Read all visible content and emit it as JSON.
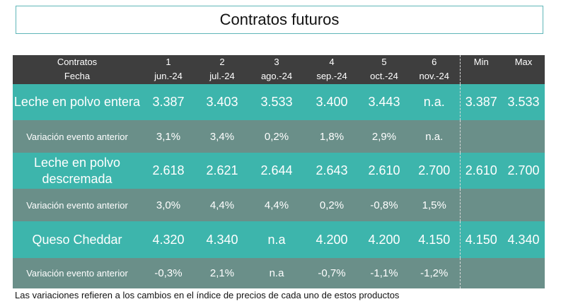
{
  "title": "Contratos futuros",
  "header": {
    "label_top": "Contratos",
    "label_bottom": "Fecha",
    "columns": [
      {
        "num": "1",
        "date": "jun.-24"
      },
      {
        "num": "2",
        "date": "jul.-24"
      },
      {
        "num": "3",
        "date": "ago.-24"
      },
      {
        "num": "4",
        "date": "sep.-24"
      },
      {
        "num": "5",
        "date": "oct.-24"
      },
      {
        "num": "6",
        "date": "nov.-24"
      }
    ],
    "min_label": "Min",
    "max_label": "Max"
  },
  "rows": [
    {
      "name": "Leche en polvo entera",
      "values": [
        "3.387",
        "3.403",
        "3.533",
        "3.400",
        "3.443",
        "n.a."
      ],
      "min": "3.387",
      "max": "3.533"
    },
    {
      "name": "Variación evento anterior",
      "values": [
        "3,1%",
        "3,4%",
        "0,2%",
        "1,8%",
        "2,9%",
        "n.a."
      ],
      "min": "",
      "max": ""
    },
    {
      "name": "Leche en polvo descremada",
      "values": [
        "2.618",
        "2.621",
        "2.644",
        "2.643",
        "2.610",
        "2.700"
      ],
      "min": "2.610",
      "max": "2.700"
    },
    {
      "name": "Variación evento anterior",
      "values": [
        "3,0%",
        "4,4%",
        "4,4%",
        "0,2%",
        "-0,8%",
        "1,5%"
      ],
      "min": "",
      "max": ""
    },
    {
      "name": "Queso Cheddar",
      "values": [
        "4.320",
        "4.340",
        "n.a",
        "4.200",
        "4.200",
        "4.150"
      ],
      "min": "4.150",
      "max": "4.340"
    },
    {
      "name": "Variación evento anterior",
      "values": [
        "-0,3%",
        "2,1%",
        "n.a",
        "-0,7%",
        "-1,1%",
        "-1,2%"
      ],
      "min": "",
      "max": ""
    }
  ],
  "footnote": "Las variaciones refieren a los cambios en el índice de precios de cada uno de estos productos",
  "colors": {
    "header_bg": "#3e3e3e",
    "product_row_bg": "#3db5ac",
    "variation_row_bg": "#6a8f89",
    "title_border": "#5fb6b8"
  }
}
